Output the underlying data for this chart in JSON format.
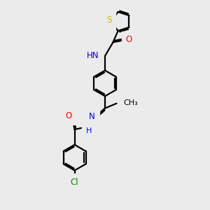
{
  "background_color": "#ebebeb",
  "bond_color": "#000000",
  "S_color": "#bbbb00",
  "O_color": "#ff0000",
  "N_color": "#0000ee",
  "Cl_color": "#008800",
  "line_width": 1.6,
  "font_size": 8.5,
  "xlim": [
    0,
    10
  ],
  "ylim": [
    0,
    13
  ]
}
